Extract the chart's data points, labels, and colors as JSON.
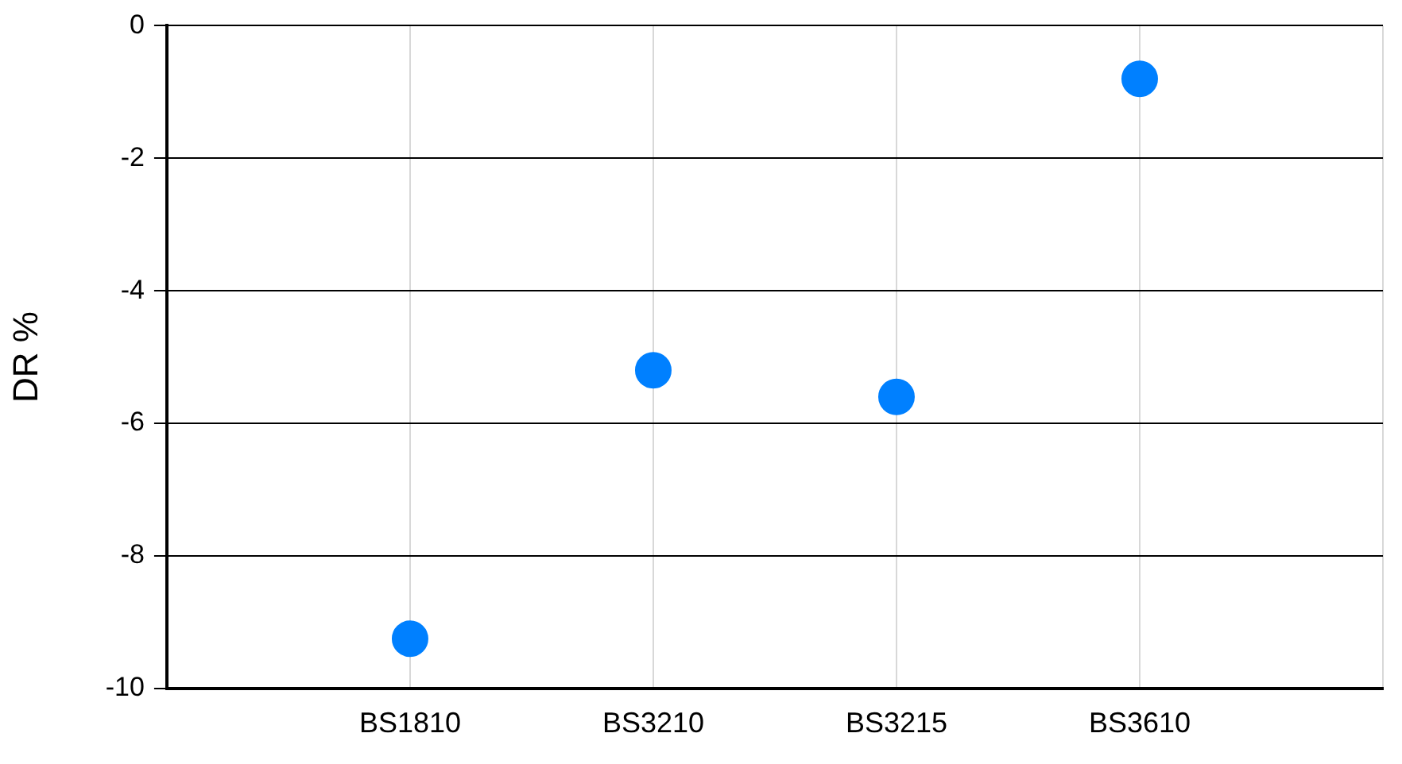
{
  "chart_data": {
    "type": "scatter",
    "ylabel": "DR %",
    "categories": [
      null,
      "BS1810",
      "BS3210",
      "BS3215",
      "BS3610",
      null
    ],
    "series": [
      {
        "color": "#0080ff",
        "values": [
          null,
          -9.25,
          -5.2,
          -5.6,
          -0.8,
          null
        ]
      }
    ],
    "ylim": [
      -10,
      0
    ],
    "yticks": [
      -10,
      -8,
      -6,
      -4,
      -2,
      0
    ],
    "grid": true,
    "legend": false,
    "marker": "circle"
  }
}
